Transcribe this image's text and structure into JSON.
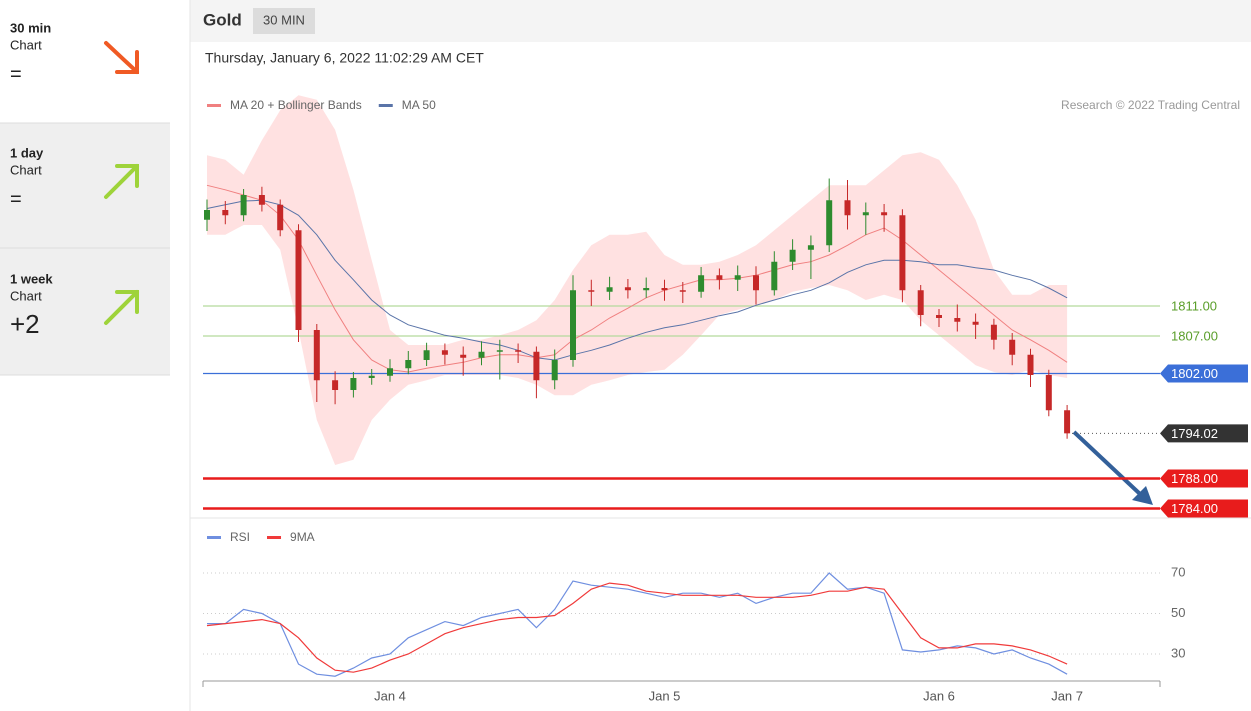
{
  "sidebar": {
    "items": [
      {
        "period": "30 min",
        "kind": "Chart",
        "score": "="
      },
      {
        "period": "1 day",
        "kind": "Chart",
        "score": "="
      },
      {
        "period": "1 week",
        "kind": "Chart",
        "score": "+2"
      }
    ]
  },
  "header": {
    "title": "Gold",
    "timeframe": "30 MIN",
    "timestamp": "Thursday, January 6, 2022 11:02:29 AM CET"
  },
  "chart_data": [
    {
      "type": "candlestick",
      "source": "Research © 2022 Trading Central",
      "ylim": [
        1782,
        1842
      ],
      "up_color": "#2e8b2e",
      "down_color": "#c62828",
      "open": [
        1822.5,
        1823.8,
        1823.1,
        1825.8,
        1824.5,
        1821.1,
        1807.8,
        1801.1,
        1799.8,
        1801.4,
        1801.7,
        1802.7,
        1803.8,
        1805.1,
        1804.5,
        1804.1,
        1804.9,
        1805.1,
        1804.9,
        1801.1,
        1803.8,
        1813.1,
        1812.9,
        1813.5,
        1813.1,
        1813.4,
        1813.1,
        1812.9,
        1815.1,
        1814.5,
        1815.1,
        1813.1,
        1816.9,
        1818.5,
        1819.1,
        1825.1,
        1823.1,
        1823.5,
        1823.1,
        1813.1,
        1809.8,
        1809.4,
        1808.9,
        1808.5,
        1806.5,
        1804.5,
        1801.8,
        1797.1
      ],
      "high": [
        1825.2,
        1825.0,
        1826.6,
        1826.9,
        1825.2,
        1821.9,
        1808.6,
        1802.3,
        1802.2,
        1802.6,
        1803.9,
        1805.0,
        1806.1,
        1806.0,
        1805.6,
        1806.3,
        1806.5,
        1806.0,
        1805.6,
        1805.2,
        1815.1,
        1814.5,
        1814.9,
        1814.6,
        1814.8,
        1814.5,
        1814.2,
        1816.2,
        1816.0,
        1816.4,
        1816.3,
        1818.3,
        1819.9,
        1820.4,
        1828.0,
        1827.8,
        1824.8,
        1824.6,
        1823.9,
        1813.8,
        1810.6,
        1811.2,
        1810.0,
        1809.3,
        1807.4,
        1805.3,
        1802.5,
        1797.8
      ],
      "low": [
        1821.0,
        1821.9,
        1822.3,
        1823.6,
        1820.3,
        1806.2,
        1798.2,
        1797.9,
        1798.8,
        1800.5,
        1800.9,
        1801.9,
        1803.0,
        1803.2,
        1801.7,
        1803.1,
        1801.2,
        1803.4,
        1798.7,
        1799.9,
        1802.9,
        1811.0,
        1811.8,
        1812.0,
        1812.1,
        1811.7,
        1811.4,
        1812.1,
        1813.2,
        1813.0,
        1811.2,
        1812.4,
        1815.8,
        1814.6,
        1818.2,
        1821.2,
        1820.5,
        1820.9,
        1811.5,
        1808.3,
        1808.2,
        1807.6,
        1806.6,
        1805.2,
        1803.1,
        1800.2,
        1796.3,
        1793.3
      ],
      "close": [
        1823.8,
        1823.1,
        1825.8,
        1824.5,
        1821.1,
        1807.8,
        1801.1,
        1799.8,
        1801.4,
        1801.7,
        1802.7,
        1803.8,
        1805.1,
        1804.5,
        1804.1,
        1804.9,
        1805.1,
        1804.9,
        1801.1,
        1803.8,
        1813.1,
        1812.9,
        1813.5,
        1813.1,
        1813.4,
        1813.1,
        1812.9,
        1815.1,
        1814.5,
        1815.1,
        1813.1,
        1816.9,
        1818.5,
        1819.1,
        1825.1,
        1823.1,
        1823.5,
        1823.1,
        1813.1,
        1809.8,
        1809.4,
        1808.9,
        1808.5,
        1806.5,
        1804.5,
        1801.8,
        1797.1,
        1794.02
      ],
      "series": [
        {
          "name": "MA 20 + Bollinger Bands",
          "color": "#f08080",
          "band_color": "#ffd9d9",
          "values": [
            1827.1,
            1826.5,
            1825.8,
            1825.1,
            1823.1,
            1819.8,
            1815.1,
            1810.5,
            1806.5,
            1803.8,
            1802.5,
            1802.2,
            1802.7,
            1803.1,
            1803.5,
            1804.1,
            1804.5,
            1804.5,
            1804.1,
            1804.5,
            1806.5,
            1807.8,
            1809.4,
            1810.7,
            1812.1,
            1813.1,
            1813.8,
            1814.5,
            1814.5,
            1814.7,
            1815.1,
            1815.8,
            1816.5,
            1816.9,
            1817.8,
            1819.1,
            1820.5,
            1821.4,
            1819.8,
            1817.8,
            1815.8,
            1813.8,
            1811.8,
            1809.8,
            1807.8,
            1806.5,
            1805.1,
            1803.5
          ],
          "upper": [
            1831.1,
            1830.5,
            1828.5,
            1833.1,
            1837.1,
            1839.1,
            1838.5,
            1834.5,
            1826.5,
            1817.1,
            1807.8,
            1805.8,
            1805.8,
            1805.8,
            1806.5,
            1806.5,
            1807.1,
            1807.8,
            1809.1,
            1811.8,
            1815.8,
            1819.1,
            1820.5,
            1820.5,
            1820.9,
            1817.8,
            1816.5,
            1816.5,
            1816.9,
            1817.8,
            1819.1,
            1821.1,
            1823.1,
            1825.1,
            1827.1,
            1827.1,
            1827.1,
            1829.1,
            1831.1,
            1831.5,
            1830.5,
            1827.1,
            1822.5,
            1815.8,
            1812.5,
            1812.5,
            1813.8,
            1813.8
          ],
          "lower": [
            1820.5,
            1820.5,
            1821.8,
            1821.8,
            1818.5,
            1807.8,
            1795.8,
            1789.8,
            1790.5,
            1795.8,
            1798.5,
            1800.5,
            1801.1,
            1801.8,
            1801.8,
            1801.8,
            1801.8,
            1801.4,
            1800.5,
            1799.1,
            1799.1,
            1800.5,
            1801.1,
            1801.8,
            1802.2,
            1802.5,
            1804.5,
            1807.1,
            1809.8,
            1810.5,
            1811.1,
            1811.8,
            1812.9,
            1813.4,
            1813.8,
            1813.1,
            1811.8,
            1812.5,
            1811.8,
            1809.1,
            1807.1,
            1805.1,
            1803.1,
            1802.2,
            1801.8,
            1802.5,
            1801.8,
            1801.4
          ]
        },
        {
          "name": "MA 50",
          "color": "#5a74a8",
          "values": [
            1824.0,
            1824.5,
            1825.0,
            1825.1,
            1824.5,
            1823.1,
            1820.5,
            1817.1,
            1814.5,
            1811.8,
            1809.8,
            1808.5,
            1807.8,
            1807.1,
            1806.7,
            1806.2,
            1805.8,
            1805.1,
            1804.1,
            1803.8,
            1804.5,
            1805.1,
            1805.8,
            1806.7,
            1807.5,
            1808.1,
            1808.5,
            1809.1,
            1809.7,
            1810.2,
            1811.1,
            1811.8,
            1812.5,
            1813.1,
            1814.1,
            1815.5,
            1816.5,
            1817.1,
            1817.1,
            1816.9,
            1816.5,
            1816.5,
            1816.1,
            1815.8,
            1815.1,
            1814.5,
            1813.4,
            1812.1
          ]
        }
      ],
      "levels": [
        {
          "value": 1811,
          "label": "1811.00",
          "color": "#b5d99c",
          "text_color": "#5a9e2a",
          "boxed": false
        },
        {
          "value": 1807,
          "label": "1807.00",
          "color": "#b5d99c",
          "text_color": "#5a9e2a",
          "boxed": false
        },
        {
          "value": 1802,
          "label": "1802.00",
          "color": "#3b6fd8",
          "text_color": "#ffffff",
          "boxed": true
        },
        {
          "value": 1794.02,
          "label": "1794.02",
          "color": "#333333",
          "text_color": "#ffffff",
          "boxed": true,
          "dotted": true
        },
        {
          "value": 1788,
          "label": "1788.00",
          "color": "#e81c1c",
          "text_color": "#ffffff",
          "boxed": true
        },
        {
          "value": 1784,
          "label": "1784.00",
          "color": "#e81c1c",
          "text_color": "#ffffff",
          "boxed": true
        }
      ]
    },
    {
      "type": "line",
      "ylim": [
        16.8,
        78.5
      ],
      "yticks": [
        70,
        50,
        30
      ],
      "grid": true,
      "categories": [
        null,
        null,
        null,
        null,
        null,
        null,
        null,
        null,
        null,
        null,
        "Jan 4",
        null,
        null,
        null,
        null,
        null,
        null,
        null,
        null,
        null,
        null,
        null,
        null,
        null,
        null,
        "Jan 5",
        null,
        null,
        null,
        null,
        null,
        null,
        null,
        null,
        null,
        null,
        null,
        null,
        null,
        null,
        "Jan 6",
        null,
        null,
        null,
        null,
        null,
        null,
        "Jan 7"
      ],
      "series": [
        {
          "name": "RSI",
          "color": "#6f8fe0",
          "values": [
            45,
            45,
            52,
            50,
            45,
            25,
            20,
            19,
            23,
            28,
            30,
            38,
            42,
            46,
            44,
            48,
            50,
            52,
            43,
            52,
            66,
            64,
            63,
            62,
            60,
            58,
            60,
            60,
            58,
            60,
            55,
            58,
            60,
            60,
            70,
            62,
            63,
            60,
            32,
            31,
            32,
            34,
            33,
            30,
            32,
            28,
            25,
            20
          ]
        },
        {
          "name": "9MA",
          "color": "#f03a3a",
          "values": [
            44,
            45,
            46,
            47,
            45,
            38,
            28,
            22,
            21,
            23,
            27,
            30,
            35,
            40,
            43,
            45,
            47,
            48,
            48,
            49,
            55,
            62,
            65,
            64,
            61,
            60,
            59,
            59,
            59,
            59,
            58,
            58,
            58,
            59,
            61,
            61,
            63,
            62,
            50,
            38,
            33,
            33,
            35,
            35,
            34,
            32,
            29,
            25
          ]
        }
      ]
    }
  ]
}
